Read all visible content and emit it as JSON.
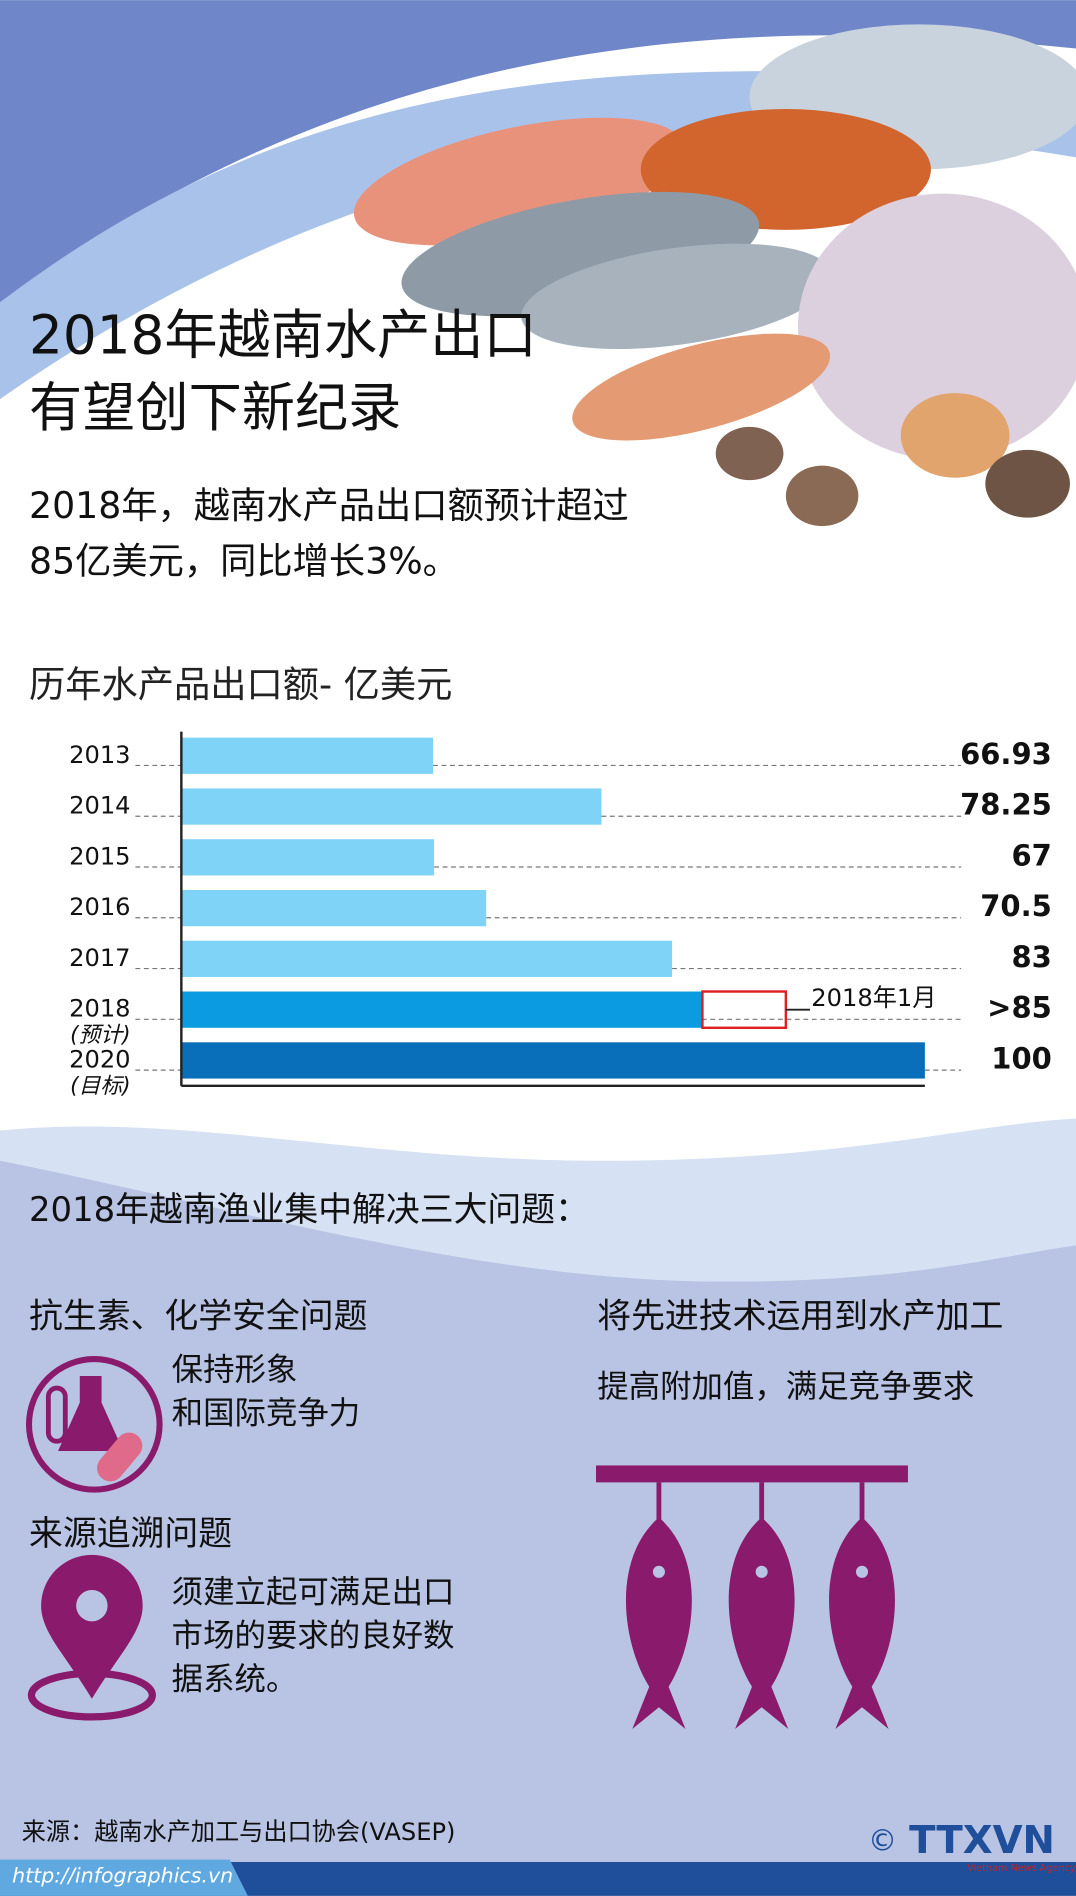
{
  "header": {
    "title": [
      "2018年越南水产出口",
      "有望创下新纪录"
    ],
    "subtitle": [
      "2018年，越南水产品出口额预计超过",
      "85亿美元，同比增长3%。"
    ]
  },
  "chart_data": {
    "type": "bar",
    "orientation": "horizontal",
    "title": "历年水产品出口额- 亿美元",
    "categories": [
      "2013",
      "2014",
      "2015",
      "2016",
      "2017",
      "2018",
      "2020"
    ],
    "category_notes": [
      null,
      null,
      null,
      null,
      null,
      "(预计)",
      "(目标)"
    ],
    "values": [
      66.93,
      78.25,
      67,
      70.5,
      83,
      85,
      100
    ],
    "value_labels": [
      "66.93",
      "78.25",
      "67",
      "70.5",
      "83",
      ">85",
      "100"
    ],
    "colors": [
      "#7fd3f7",
      "#7fd3f7",
      "#7fd3f7",
      "#7fd3f7",
      "#7fd3f7",
      "#0a9be0",
      "#0a6fba"
    ],
    "xlim": [
      50,
      100
    ],
    "annotation": {
      "value": 5.6,
      "label": "2018年1月"
    }
  },
  "issues": {
    "heading": "2018年越南渔业集中解决三大问题：",
    "items": [
      {
        "title": "抗生素、化学安全问题",
        "text": [
          "保持形象",
          "和国际竞争力"
        ]
      },
      {
        "title": "来源追溯问题",
        "text": [
          "须建立起可满足出口",
          "市场的要求的良好数",
          "据系统。"
        ]
      },
      {
        "title": "将先进技术运用到水产加工",
        "text": [
          "提高附加值，满足竞争要求"
        ]
      }
    ]
  },
  "footer": {
    "source": "来源：越南水产加工与出口协会(VASEP)",
    "url": "http://infographics.vn",
    "copyright": "©",
    "logo": "TTXVN",
    "agency": "Vietnam News Agency"
  }
}
